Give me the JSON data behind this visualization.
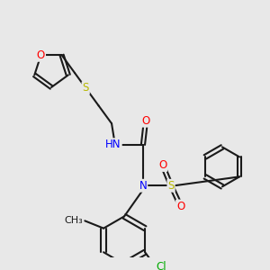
{
  "bg_color": "#e8e8e8",
  "bond_color": "#1a1a1a",
  "line_width": 1.5,
  "font_size": 8.5,
  "atom_colors": {
    "O": "#ff0000",
    "N": "#0000ff",
    "S": "#b8b800",
    "Cl": "#00aa00",
    "H": "#888888",
    "C": "#1a1a1a"
  },
  "figsize": [
    3.0,
    3.0
  ],
  "dpi": 100
}
